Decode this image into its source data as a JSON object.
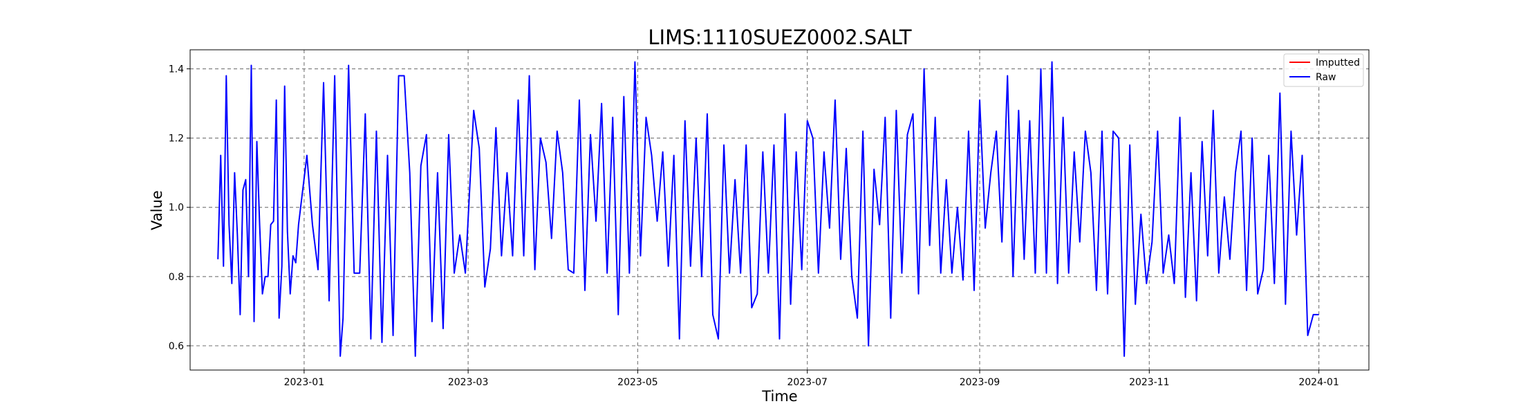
{
  "chart_data": {
    "type": "line",
    "title": "LIMS:1110SUEZ0002.SALT",
    "xlabel": "Time",
    "ylabel": "Value",
    "xlim": [
      "2022-11-21",
      "2024-01-19"
    ],
    "ylim": [
      0.53,
      1.455
    ],
    "x_ticks": [
      "2023-01-01",
      "2023-03-01",
      "2023-05-01",
      "2023-07-01",
      "2023-09-01",
      "2023-11-01",
      "2024-01-01"
    ],
    "x_tick_labels": [
      "2023-01",
      "2023-03",
      "2023-05",
      "2023-07",
      "2023-09",
      "2023-11",
      "2024-01"
    ],
    "y_ticks": [
      0.6,
      0.8,
      1.0,
      1.2,
      1.4
    ],
    "y_tick_labels": [
      "0.6",
      "0.8",
      "1.0",
      "1.2",
      "1.4"
    ],
    "grid": true,
    "grid_style": "dashed",
    "legend_position": "top-right",
    "series": [
      {
        "name": "Imputted",
        "color": "#ff0000",
        "x": [],
        "y": []
      },
      {
        "name": "Raw",
        "color": "#0000ff",
        "x": [
          "2022-12-01",
          "2022-12-02",
          "2022-12-03",
          "2022-12-04",
          "2022-12-05",
          "2022-12-06",
          "2022-12-07",
          "2022-12-08",
          "2022-12-09",
          "2022-12-10",
          "2022-12-11",
          "2022-12-12",
          "2022-12-13",
          "2022-12-14",
          "2022-12-15",
          "2022-12-16",
          "2022-12-17",
          "2022-12-18",
          "2022-12-19",
          "2022-12-20",
          "2022-12-21",
          "2022-12-22",
          "2022-12-23",
          "2022-12-24",
          "2022-12-25",
          "2022-12-26",
          "2022-12-27",
          "2022-12-28",
          "2022-12-29",
          "2022-12-30",
          "2023-01-02",
          "2023-01-04",
          "2023-01-06",
          "2023-01-08",
          "2023-01-10",
          "2023-01-12",
          "2023-01-14",
          "2023-01-15",
          "2023-01-17",
          "2023-01-19",
          "2023-01-21",
          "2023-01-23",
          "2023-01-25",
          "2023-01-27",
          "2023-01-29",
          "2023-01-31",
          "2023-02-02",
          "2023-02-04",
          "2023-02-06",
          "2023-02-08",
          "2023-02-10",
          "2023-02-12",
          "2023-02-14",
          "2023-02-16",
          "2023-02-18",
          "2023-02-20",
          "2023-02-22",
          "2023-02-24",
          "2023-02-26",
          "2023-02-28",
          "2023-03-03",
          "2023-03-05",
          "2023-03-07",
          "2023-03-09",
          "2023-03-11",
          "2023-03-13",
          "2023-03-15",
          "2023-03-17",
          "2023-03-19",
          "2023-03-21",
          "2023-03-23",
          "2023-03-25",
          "2023-03-27",
          "2023-03-29",
          "2023-03-31",
          "2023-04-02",
          "2023-04-04",
          "2023-04-06",
          "2023-04-08",
          "2023-04-10",
          "2023-04-12",
          "2023-04-14",
          "2023-04-16",
          "2023-04-18",
          "2023-04-20",
          "2023-04-22",
          "2023-04-24",
          "2023-04-26",
          "2023-04-28",
          "2023-04-30",
          "2023-05-02",
          "2023-05-04",
          "2023-05-06",
          "2023-05-08",
          "2023-05-10",
          "2023-05-12",
          "2023-05-14",
          "2023-05-16",
          "2023-05-18",
          "2023-05-20",
          "2023-05-22",
          "2023-05-24",
          "2023-05-26",
          "2023-05-28",
          "2023-05-30",
          "2023-06-01",
          "2023-06-03",
          "2023-06-05",
          "2023-06-07",
          "2023-06-09",
          "2023-06-11",
          "2023-06-13",
          "2023-06-15",
          "2023-06-17",
          "2023-06-19",
          "2023-06-21",
          "2023-06-23",
          "2023-06-25",
          "2023-06-27",
          "2023-06-29",
          "2023-07-01",
          "2023-07-03",
          "2023-07-05",
          "2023-07-07",
          "2023-07-09",
          "2023-07-11",
          "2023-07-13",
          "2023-07-15",
          "2023-07-17",
          "2023-07-19",
          "2023-07-21",
          "2023-07-23",
          "2023-07-25",
          "2023-07-27",
          "2023-07-29",
          "2023-07-31",
          "2023-08-02",
          "2023-08-04",
          "2023-08-06",
          "2023-08-08",
          "2023-08-10",
          "2023-08-12",
          "2023-08-14",
          "2023-08-16",
          "2023-08-18",
          "2023-08-20",
          "2023-08-22",
          "2023-08-24",
          "2023-08-26",
          "2023-08-28",
          "2023-08-30",
          "2023-09-01",
          "2023-09-03",
          "2023-09-05",
          "2023-09-07",
          "2023-09-09",
          "2023-09-11",
          "2023-09-13",
          "2023-09-15",
          "2023-09-17",
          "2023-09-19",
          "2023-09-21",
          "2023-09-23",
          "2023-09-25",
          "2023-09-27",
          "2023-09-29",
          "2023-10-01",
          "2023-10-03",
          "2023-10-05",
          "2023-10-07",
          "2023-10-09",
          "2023-10-11",
          "2023-10-13",
          "2023-10-15",
          "2023-10-17",
          "2023-10-19",
          "2023-10-21",
          "2023-10-23",
          "2023-10-25",
          "2023-10-27",
          "2023-10-29",
          "2023-10-31",
          "2023-11-02",
          "2023-11-04",
          "2023-11-06",
          "2023-11-08",
          "2023-11-10",
          "2023-11-12",
          "2023-11-14",
          "2023-11-16",
          "2023-11-18",
          "2023-11-20",
          "2023-11-22",
          "2023-11-24",
          "2023-11-26",
          "2023-11-28",
          "2023-11-30",
          "2023-12-02",
          "2023-12-04",
          "2023-12-06",
          "2023-12-08",
          "2023-12-10",
          "2023-12-12",
          "2023-12-14",
          "2023-12-16",
          "2023-12-18",
          "2023-12-20",
          "2023-12-22",
          "2023-12-24",
          "2023-12-26",
          "2023-12-28",
          "2023-12-30",
          "2024-01-01"
        ],
        "y": [
          0.85,
          1.15,
          0.83,
          1.38,
          0.95,
          0.78,
          1.1,
          0.92,
          0.69,
          1.05,
          1.08,
          0.8,
          1.41,
          0.67,
          1.19,
          0.95,
          0.75,
          0.8,
          0.8,
          0.95,
          0.96,
          1.31,
          0.68,
          0.83,
          1.35,
          0.93,
          0.75,
          0.86,
          0.84,
          0.95,
          1.15,
          0.95,
          0.82,
          1.36,
          0.73,
          1.38,
          0.57,
          0.68,
          1.41,
          0.81,
          0.81,
          1.27,
          0.62,
          1.22,
          0.61,
          1.15,
          0.63,
          1.38,
          1.38,
          1.1,
          0.57,
          1.12,
          1.21,
          0.67,
          1.1,
          0.65,
          1.21,
          0.81,
          0.92,
          0.81,
          1.28,
          1.17,
          0.77,
          0.88,
          1.23,
          0.86,
          1.1,
          0.86,
          1.31,
          0.86,
          1.38,
          0.82,
          1.2,
          1.13,
          0.91,
          1.22,
          1.1,
          0.82,
          0.81,
          1.31,
          0.76,
          1.21,
          0.96,
          1.3,
          0.81,
          1.26,
          0.69,
          1.32,
          0.81,
          1.42,
          0.86,
          1.26,
          1.15,
          0.96,
          1.16,
          0.83,
          1.15,
          0.62,
          1.25,
          0.83,
          1.2,
          0.8,
          1.27,
          0.69,
          0.62,
          1.18,
          0.81,
          1.08,
          0.81,
          1.18,
          0.71,
          0.75,
          1.16,
          0.81,
          1.18,
          0.62,
          1.27,
          0.72,
          1.16,
          0.82,
          1.25,
          1.2,
          0.81,
          1.16,
          0.94,
          1.31,
          0.85,
          1.17,
          0.8,
          0.68,
          1.22,
          0.6,
          1.11,
          0.95,
          1.26,
          0.68,
          1.28,
          0.81,
          1.21,
          1.27,
          0.75,
          1.4,
          0.89,
          1.26,
          0.81,
          1.08,
          0.81,
          1.0,
          0.79,
          1.22,
          0.76,
          1.31,
          0.94,
          1.1,
          1.22,
          0.9,
          1.38,
          0.8,
          1.28,
          0.85,
          1.25,
          0.81,
          1.4,
          0.81,
          1.42,
          0.78,
          1.26,
          0.81,
          1.16,
          0.9,
          1.22,
          1.1,
          0.76,
          1.22,
          0.75,
          1.22,
          1.2,
          0.57,
          1.18,
          0.72,
          0.98,
          0.78,
          0.9,
          1.22,
          0.81,
          0.92,
          0.78,
          1.26,
          0.74,
          1.1,
          0.73,
          1.19,
          0.86,
          1.28,
          0.81,
          1.03,
          0.85,
          1.1,
          1.22,
          0.76,
          1.2,
          0.75,
          0.82,
          1.15,
          0.78,
          1.33,
          0.72,
          1.22,
          0.92,
          1.15,
          0.63,
          0.69,
          0.69
        ]
      }
    ]
  }
}
